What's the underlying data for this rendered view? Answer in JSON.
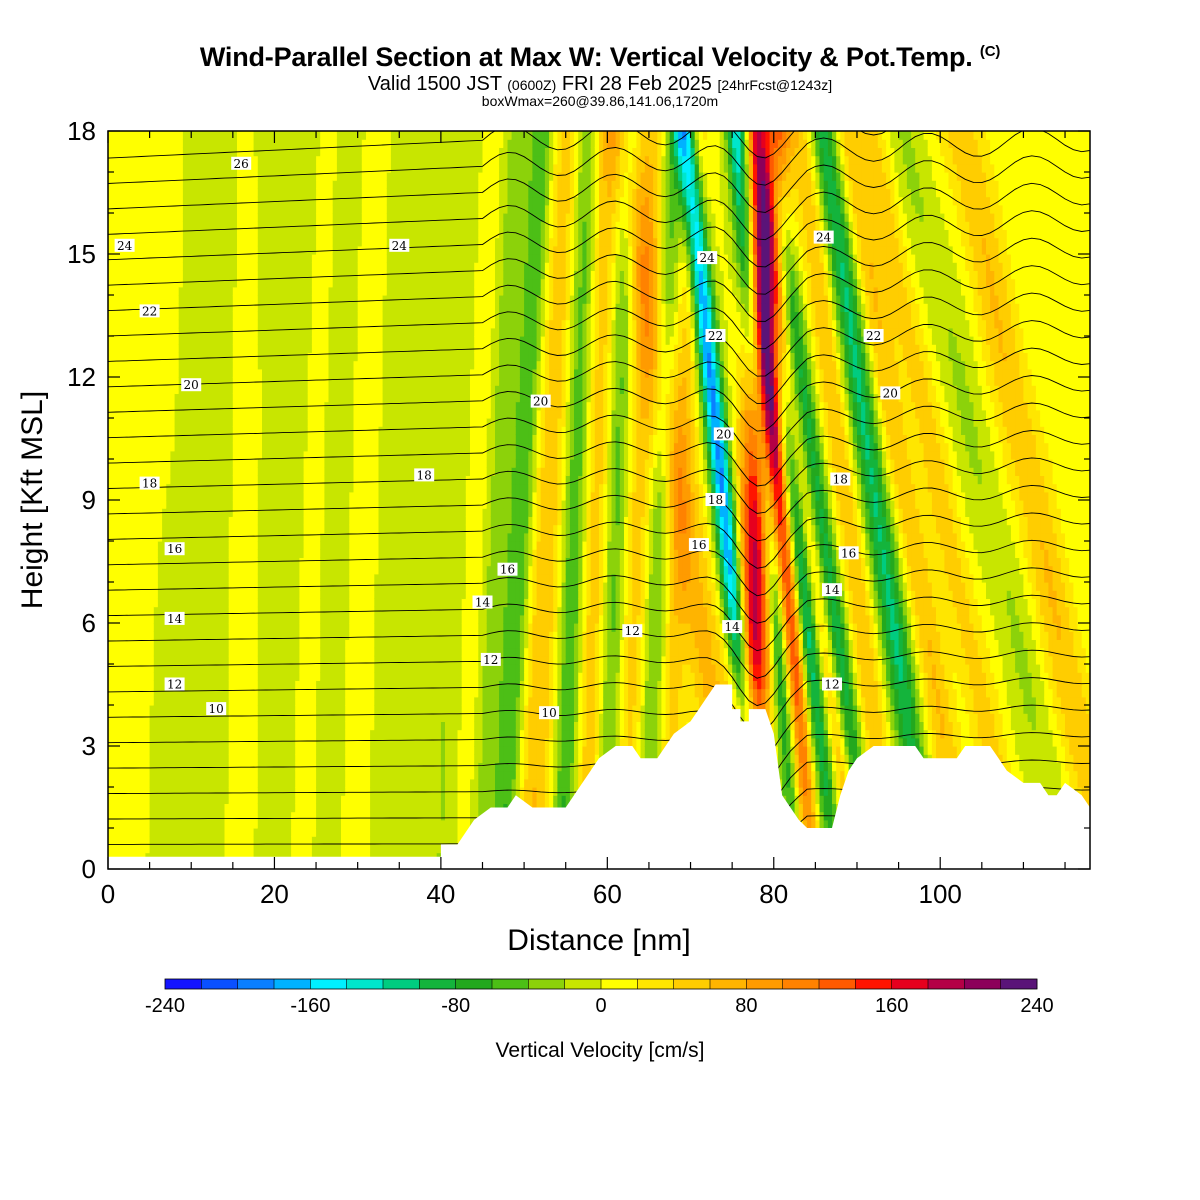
{
  "title": "Wind-Parallel Section at Max W: Vertical Velocity & Pot.Temp.",
  "title_mark": "(C)",
  "subtitle_valid": "Valid 1500 JST",
  "subtitle_utc": "(0600Z)",
  "subtitle_date": "FRI 28 Feb 2025",
  "subtitle_fcst": "[24hrFcst@1243z]",
  "box_info": "boxWmax=260@39.86,141.06,1720m",
  "chart_data": {
    "type": "heatmap",
    "xlabel": "Distance [nm]",
    "ylabel": "Height [Kft MSL]",
    "xlim": [
      0,
      118
    ],
    "ylim": [
      0,
      18
    ],
    "x_ticks": [
      "0",
      "20",
      "40",
      "60",
      "80",
      "100"
    ],
    "y_ticks": [
      "0",
      "3",
      "6",
      "9",
      "12",
      "15",
      "18"
    ],
    "colorbar": {
      "label": "Vertical Velocity [cm/s]",
      "min": -240,
      "max": 240,
      "step": 20,
      "tick_labels": [
        "-240",
        "-160",
        "-80",
        "0",
        "80",
        "160",
        "240"
      ],
      "colors": [
        "#1414ff",
        "#0a50ff",
        "#0a7fff",
        "#00b2ff",
        "#00f0ff",
        "#00e6cc",
        "#00cc80",
        "#14b43c",
        "#23a81e",
        "#4cbf16",
        "#8cd20a",
        "#c8e600",
        "#ffff00",
        "#ffe600",
        "#ffcd00",
        "#ffb400",
        "#ff9b00",
        "#ff8200",
        "#ff5a00",
        "#ff1400",
        "#e6001e",
        "#b40046",
        "#8c005a",
        "#5a1478"
      ]
    },
    "contour_labels": [
      "10",
      "12",
      "14",
      "16",
      "18",
      "20",
      "22",
      "24",
      "26"
    ],
    "terrain_kft": [
      [
        0,
        0.3
      ],
      [
        40,
        0.3
      ],
      [
        40,
        0.6
      ],
      [
        42,
        0.6
      ],
      [
        43,
        0.9
      ],
      [
        44,
        1.2
      ],
      [
        46,
        1.5
      ],
      [
        48,
        1.5
      ],
      [
        49,
        1.8
      ],
      [
        51,
        1.5
      ],
      [
        55,
        1.5
      ],
      [
        56,
        1.8
      ],
      [
        57,
        2.1
      ],
      [
        58,
        2.4
      ],
      [
        59,
        2.7
      ],
      [
        61,
        3.0
      ],
      [
        63,
        3.0
      ],
      [
        64,
        2.7
      ],
      [
        66,
        2.7
      ],
      [
        67,
        3.0
      ],
      [
        68,
        3.3
      ],
      [
        70,
        3.6
      ],
      [
        71,
        3.9
      ],
      [
        72,
        4.2
      ],
      [
        73,
        4.5
      ],
      [
        75,
        4.5
      ],
      [
        75,
        3.9
      ],
      [
        76,
        3.9
      ],
      [
        76,
        3.6
      ],
      [
        77,
        3.6
      ],
      [
        77,
        3.9
      ],
      [
        79,
        3.9
      ],
      [
        80,
        3.3
      ],
      [
        81,
        1.8
      ],
      [
        82,
        1.5
      ],
      [
        83,
        1.2
      ],
      [
        84,
        1.0
      ],
      [
        87,
        1.0
      ],
      [
        88,
        1.8
      ],
      [
        89,
        2.4
      ],
      [
        90,
        2.7
      ],
      [
        92,
        3.0
      ],
      [
        97,
        3.0
      ],
      [
        98,
        2.7
      ],
      [
        102,
        2.7
      ],
      [
        103,
        3.0
      ],
      [
        106,
        3.0
      ],
      [
        107,
        2.7
      ],
      [
        108,
        2.4
      ],
      [
        110,
        2.1
      ],
      [
        112,
        2.1
      ],
      [
        113,
        1.8
      ],
      [
        114,
        1.8
      ],
      [
        115,
        2.1
      ],
      [
        117,
        1.8
      ],
      [
        118,
        1.5
      ]
    ],
    "w_features": [
      {
        "x": 3,
        "tilt": 0.05,
        "width": 4,
        "amp": 6
      },
      {
        "x": 10,
        "tilt": 0.05,
        "width": 5,
        "amp": -12
      },
      {
        "x": 22,
        "tilt": 0.05,
        "width": 2.5,
        "amp": -20
      },
      {
        "x": 24,
        "tilt": 0.05,
        "width": 2,
        "amp": 16
      },
      {
        "x": 27,
        "tilt": 0.05,
        "width": 2,
        "amp": -18
      },
      {
        "x": 31,
        "tilt": 0.05,
        "width": 2,
        "amp": 12
      },
      {
        "x": 33,
        "tilt": 0.05,
        "width": 2,
        "amp": -16
      },
      {
        "x": 37,
        "tilt": 0.06,
        "width": 2,
        "amp": -20
      },
      {
        "x": 41,
        "tilt": 0.06,
        "width": 2,
        "amp": -22
      },
      {
        "x": 44,
        "tilt": 0.06,
        "width": 2,
        "amp": 14
      },
      {
        "x": 46,
        "tilt": 0.08,
        "width": 1.8,
        "amp": -40
      },
      {
        "x": 49,
        "tilt": 0.08,
        "width": 1.5,
        "amp": -70
      },
      {
        "x": 52,
        "tilt": 0.08,
        "width": 2.5,
        "amp": 55
      },
      {
        "x": 55.5,
        "tilt": 0.05,
        "width": 1.6,
        "amp": -75
      },
      {
        "x": 58,
        "tilt": 0.05,
        "width": 1.8,
        "amp": 50
      },
      {
        "x": 60.5,
        "tilt": 0.05,
        "width": 1.4,
        "amp": -55
      },
      {
        "x": 63,
        "tilt": 0.06,
        "width": 1.8,
        "amp": 45
      },
      {
        "x": 65.5,
        "tilt": 0.06,
        "width": 1.4,
        "amp": -55
      },
      {
        "x": 68,
        "tilt": 0.06,
        "width": 1.5,
        "amp": 45
      },
      {
        "x": 72,
        "tilt": -0.25,
        "width": 2.4,
        "amp": 60
      },
      {
        "x": 76,
        "tilt": -0.16,
        "width": 1.3,
        "amp": -190
      },
      {
        "x": 77.5,
        "tilt": 0.05,
        "width": 2.2,
        "amp": 190
      },
      {
        "x": 81,
        "tilt": -0.13,
        "width": 1.3,
        "amp": -150
      },
      {
        "x": 82.3,
        "tilt": -0.12,
        "width": 1.4,
        "amp": 190
      },
      {
        "x": 84.5,
        "tilt": -0.18,
        "width": 1.3,
        "amp": -130
      },
      {
        "x": 88,
        "tilt": -0.22,
        "width": 1.5,
        "amp": -110
      },
      {
        "x": 86.5,
        "tilt": -0.2,
        "width": 1.2,
        "amp": 70
      },
      {
        "x": 91,
        "tilt": -0.18,
        "width": 1.8,
        "amp": 55
      },
      {
        "x": 95,
        "tilt": -0.22,
        "width": 1.8,
        "amp": -110
      },
      {
        "x": 99,
        "tilt": -0.25,
        "width": 1.8,
        "amp": 55
      },
      {
        "x": 104,
        "tilt": -0.3,
        "width": 2.0,
        "amp": 45
      },
      {
        "x": 110,
        "tilt": -0.35,
        "width": 2.5,
        "amp": -25
      },
      {
        "x": 115,
        "tilt": -0.3,
        "width": 2.5,
        "amp": 55
      }
    ]
  }
}
